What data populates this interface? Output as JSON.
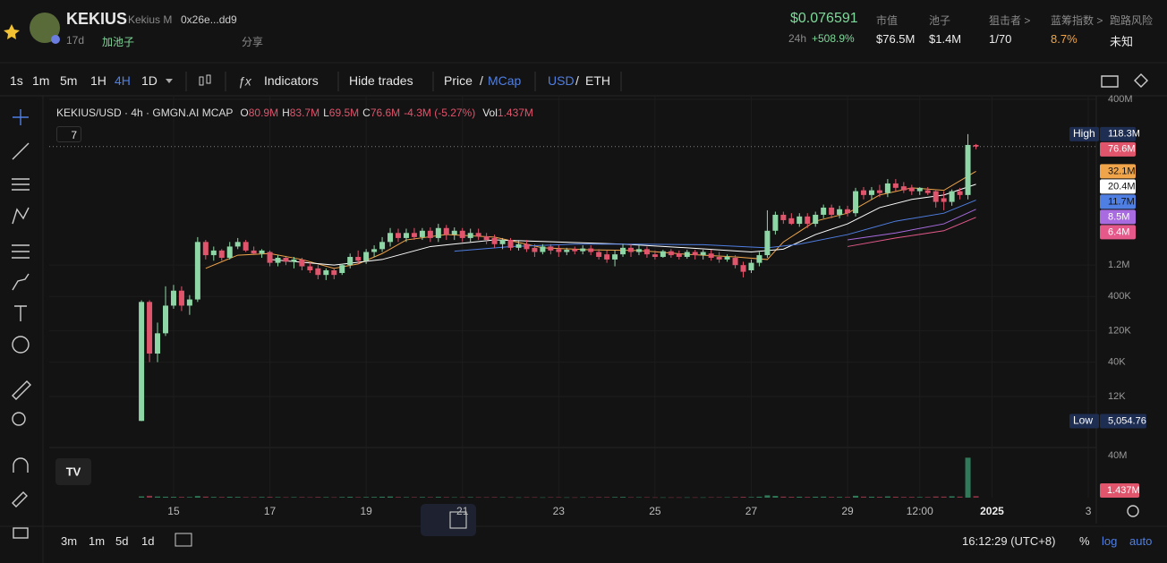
{
  "header": {
    "token": "KEKIUS",
    "name": "Kekius M",
    "address": "0x26e...dd9",
    "age": "17d",
    "pool_tag": "加池子",
    "share": "分享",
    "price": "$0.076591",
    "change_label": "24h",
    "change": "+508.9%",
    "stats": [
      {
        "label": "市值",
        "value": "$76.5M"
      },
      {
        "label": "池子",
        "value": "$1.4M"
      },
      {
        "label": "狙击者 >",
        "value": "1/70"
      },
      {
        "label": "蓝筹指数 >",
        "value": "8.7%"
      },
      {
        "label": "跑路风险",
        "value": "未知"
      }
    ]
  },
  "toolbar": {
    "intervals": [
      "1s",
      "1m",
      "5m",
      "1H",
      "4H",
      "1D"
    ],
    "indicators": "Indicators",
    "hide_trades": "Hide trades",
    "price": "Price",
    "slash": "/",
    "mcap": "MCap",
    "usd": "USD",
    "eth": "ETH"
  },
  "legend": {
    "symbol": "KEKIUS/USD · 4h · GMGN.AI MCAP",
    "items": [
      {
        "key": "O",
        "value": "80.9M"
      },
      {
        "key": "H",
        "value": "83.7M"
      },
      {
        "key": "L",
        "value": "69.5M"
      },
      {
        "key": "C",
        "value": "76.6M"
      }
    ],
    "change": "-4.3M (-5.27%)",
    "volume_key": "Vol",
    "volume_value": "1.437M",
    "indicator_count": "7"
  },
  "footer": {
    "ranges": [
      "3m",
      "1m",
      "5d",
      "1d"
    ],
    "time": "16:12:29 (UTC+8)",
    "percent": "%",
    "log": "log",
    "auto": "auto"
  },
  "chart_data": {
    "type": "candlestick",
    "log": true,
    "grid": true,
    "ylim": [
      4000,
      400000000
    ],
    "yticks": [
      {
        "value": 400000000,
        "label": "400M"
      },
      {
        "value": 1200000,
        "label": "1.2M"
      },
      {
        "value": 400000,
        "label": "400K"
      },
      {
        "value": 120000,
        "label": "120K"
      },
      {
        "value": 40000,
        "label": "40K"
      },
      {
        "value": 12000,
        "label": "12K"
      }
    ],
    "xlim": [
      -11.5,
      119
    ],
    "xticks": [
      {
        "value": 4,
        "label": "15"
      },
      {
        "value": 16,
        "label": "17"
      },
      {
        "value": 28,
        "label": "19"
      },
      {
        "value": 40,
        "label": "21"
      },
      {
        "value": 52,
        "label": "23"
      },
      {
        "value": 64,
        "label": "25"
      },
      {
        "value": 76,
        "label": "27"
      },
      {
        "value": 88,
        "label": "29"
      },
      {
        "value": 97,
        "label": "12:00"
      },
      {
        "value": 106,
        "label": "2025"
      },
      {
        "value": 118,
        "label": "3"
      }
    ],
    "up_color": "#8ed6a6",
    "down_color": "#e0546c",
    "ohlc": [
      [
        5100,
        350000,
        5054.76,
        330000
      ],
      [
        330000,
        350000,
        40000,
        54000
      ],
      [
        54000,
        160000,
        40000,
        110000
      ],
      [
        110000,
        570000,
        100000,
        290000
      ],
      [
        290000,
        600000,
        260000,
        490000
      ],
      [
        490000,
        570000,
        240000,
        290000
      ],
      [
        290000,
        420000,
        210000,
        360000
      ],
      [
        360000,
        3200000,
        330000,
        2700000
      ],
      [
        2700000,
        2900000,
        1460000,
        1700000
      ],
      [
        1700000,
        2300000,
        1400000,
        2000000
      ],
      [
        2000000,
        2100000,
        1400000,
        1550000
      ],
      [
        1550000,
        2700000,
        1460000,
        2300000
      ],
      [
        2300000,
        3100000,
        2100000,
        2700000
      ],
      [
        2700000,
        2900000,
        1900000,
        2000000
      ],
      [
        2000000,
        2300000,
        1700000,
        1800000
      ],
      [
        1800000,
        2100000,
        1550000,
        2000000
      ],
      [
        1900000,
        2000000,
        1150000,
        1300000
      ],
      [
        1300000,
        1700000,
        1150000,
        1550000
      ],
      [
        1550000,
        1600000,
        1200000,
        1350000
      ],
      [
        1350000,
        1600000,
        1070000,
        1460000
      ],
      [
        1460000,
        1550000,
        1000000,
        1150000
      ],
      [
        1150000,
        1300000,
        910000,
        1000000
      ],
      [
        1070000,
        1200000,
        730000,
        850000
      ],
      [
        850000,
        1070000,
        710000,
        1000000
      ],
      [
        1000000,
        1100000,
        730000,
        850000
      ],
      [
        910000,
        1250000,
        850000,
        1200000
      ],
      [
        1200000,
        1800000,
        1070000,
        1600000
      ],
      [
        1600000,
        2000000,
        1250000,
        1400000
      ],
      [
        1400000,
        2100000,
        1250000,
        1900000
      ],
      [
        1900000,
        2400000,
        1600000,
        2100000
      ],
      [
        2100000,
        3200000,
        1900000,
        2700000
      ],
      [
        2700000,
        4400000,
        2300000,
        3700000
      ],
      [
        3700000,
        4300000,
        2700000,
        3100000
      ],
      [
        3100000,
        4300000,
        2700000,
        3700000
      ],
      [
        3700000,
        4400000,
        2900000,
        3200000
      ],
      [
        3200000,
        4400000,
        2900000,
        4000000
      ],
      [
        4000000,
        4500000,
        2700000,
        3100000
      ],
      [
        3100000,
        5100000,
        2700000,
        4400000
      ],
      [
        4400000,
        4900000,
        2900000,
        3500000
      ],
      [
        3500000,
        4500000,
        2900000,
        4000000
      ],
      [
        4000000,
        4400000,
        2700000,
        3100000
      ],
      [
        3100000,
        4300000,
        2700000,
        3700000
      ],
      [
        3700000,
        4300000,
        2900000,
        3300000
      ],
      [
        3300000,
        3700000,
        2500000,
        2900000
      ],
      [
        3100000,
        3500000,
        2200000,
        2500000
      ],
      [
        2500000,
        3100000,
        2100000,
        2900000
      ],
      [
        2900000,
        3100000,
        2000000,
        2200000
      ],
      [
        2200000,
        2900000,
        2000000,
        2500000
      ],
      [
        2500000,
        2900000,
        1900000,
        2100000
      ],
      [
        2200000,
        2500000,
        1600000,
        1900000
      ],
      [
        1900000,
        2500000,
        1750000,
        2300000
      ],
      [
        2300000,
        2500000,
        1750000,
        2000000
      ],
      [
        2100000,
        2400000,
        1600000,
        1900000
      ],
      [
        1900000,
        2200000,
        1700000,
        2050000
      ],
      [
        2100000,
        2300000,
        1750000,
        1950000
      ],
      [
        1950000,
        2400000,
        1750000,
        2150000
      ],
      [
        2150000,
        2400000,
        1700000,
        1900000
      ],
      [
        1900000,
        2100000,
        1460000,
        1600000
      ],
      [
        1750000,
        2000000,
        1300000,
        1460000
      ],
      [
        1460000,
        2000000,
        1150000,
        1750000
      ],
      [
        1750000,
        2500000,
        1600000,
        2200000
      ],
      [
        2200000,
        2500000,
        1600000,
        1900000
      ],
      [
        1900000,
        2400000,
        1700000,
        2100000
      ],
      [
        2100000,
        2300000,
        1550000,
        1750000
      ],
      [
        1750000,
        2000000,
        1460000,
        1600000
      ],
      [
        1600000,
        2050000,
        1550000,
        1950000
      ],
      [
        1950000,
        2100000,
        1550000,
        1700000
      ],
      [
        1800000,
        2000000,
        1460000,
        1600000
      ],
      [
        1600000,
        2050000,
        1500000,
        1900000
      ],
      [
        1900000,
        2050000,
        1460000,
        1700000
      ],
      [
        1700000,
        2050000,
        1460000,
        1900000
      ],
      [
        1800000,
        2050000,
        1400000,
        1550000
      ],
      [
        1600000,
        1900000,
        1300000,
        1460000
      ],
      [
        1460000,
        1750000,
        1350000,
        1600000
      ],
      [
        1550000,
        1700000,
        1070000,
        1200000
      ],
      [
        1200000,
        1350000,
        780000,
        950000
      ],
      [
        1000000,
        1460000,
        910000,
        1300000
      ],
      [
        1300000,
        1900000,
        1150000,
        1700000
      ],
      [
        1700000,
        8200000,
        1550000,
        4000000
      ],
      [
        4000000,
        7800000,
        3500000,
        7000000
      ],
      [
        7000000,
        7800000,
        5100000,
        5800000
      ],
      [
        6200000,
        7400000,
        4900000,
        5100000
      ],
      [
        5100000,
        7400000,
        4600000,
        6600000
      ],
      [
        6600000,
        7400000,
        4400000,
        5100000
      ],
      [
        5100000,
        7800000,
        4600000,
        7000000
      ],
      [
        7000000,
        10000000,
        6200000,
        9000000
      ],
      [
        9000000,
        10000000,
        6200000,
        7000000
      ],
      [
        7000000,
        9600000,
        6200000,
        8500000
      ],
      [
        8500000,
        9600000,
        6600000,
        7400000
      ],
      [
        7400000,
        18000000,
        6600000,
        16000000
      ],
      [
        16500000,
        18500000,
        12000000,
        14000000
      ],
      [
        14000000,
        18500000,
        12000000,
        16500000
      ],
      [
        16500000,
        20000000,
        13000000,
        15000000
      ],
      [
        15000000,
        24500000,
        13000000,
        21000000
      ],
      [
        21000000,
        24500000,
        16000000,
        18000000
      ],
      [
        19000000,
        22000000,
        15000000,
        16500000
      ],
      [
        18000000,
        20000000,
        14000000,
        16000000
      ],
      [
        16000000,
        18500000,
        14000000,
        18000000
      ],
      [
        16500000,
        18500000,
        14000000,
        15000000
      ],
      [
        16000000,
        17000000,
        9000000,
        11000000
      ],
      [
        12500000,
        16000000,
        8200000,
        11000000
      ],
      [
        11000000,
        17000000,
        9600000,
        16000000
      ],
      [
        16000000,
        18000000,
        12000000,
        14000000
      ],
      [
        14000000,
        118300000,
        12000000,
        80900000
      ],
      [
        80900000,
        83700000,
        69500000,
        76600000
      ]
    ],
    "volume": [
      1200000,
      1800000,
      1100000,
      900000,
      800000,
      700000,
      600000,
      1500000,
      1000000,
      700000,
      600000,
      800000,
      700000,
      500000,
      500000,
      600000,
      700000,
      500000,
      400000,
      500000,
      500000,
      400000,
      600000,
      500000,
      400000,
      600000,
      800000,
      500000,
      600000,
      700000,
      900000,
      1100000,
      600000,
      500000,
      500000,
      600000,
      500000,
      700000,
      500000,
      400000,
      400000,
      500000,
      400000,
      400000,
      500000,
      400000,
      400000,
      300000,
      400000,
      400000,
      300000,
      400000,
      400000,
      300000,
      300000,
      400000,
      400000,
      500000,
      500000,
      600000,
      700000,
      400000,
      400000,
      400000,
      300000,
      300000,
      300000,
      300000,
      300000,
      300000,
      300000,
      400000,
      400000,
      400000,
      600000,
      800000,
      600000,
      900000,
      2200000,
      1600000,
      1000000,
      800000,
      900000,
      700000,
      900000,
      1000000,
      700000,
      700000,
      600000,
      1800000,
      1000000,
      900000,
      800000,
      1200000,
      900000,
      700000,
      700000,
      600000,
      600000,
      1100000,
      1000000,
      1300000,
      1000000,
      38000000,
      1437000
    ],
    "volume_lim": [
      0,
      40000000
    ],
    "volume_ticks": [
      {
        "value": 40000000,
        "label": "40M"
      }
    ],
    "volume_tag": {
      "value": 1437000,
      "label": "1.437M",
      "color": "#e0546c"
    },
    "price_tags": [
      {
        "tag": "High",
        "value": 118300000,
        "label": "118.3M",
        "color": "#1e2d52",
        "text_color": "#ffffff"
      },
      {
        "value": 76600000,
        "label": "76.6M",
        "color": "#e0546c",
        "text_color": "#ffffff"
      },
      {
        "value": 32100000,
        "label": "32.1M",
        "color": "#f0a54a",
        "text_color": "#111111"
      },
      {
        "value": 20400000,
        "label": "20.4M",
        "color": "#ffffff",
        "text_color": "#111111"
      },
      {
        "value": 11700000,
        "label": "11.7M",
        "color": "#4f7fe3",
        "text_color": "#111111"
      },
      {
        "value": 8500000,
        "label": "8.5M",
        "color": "#a86be0",
        "text_color": "#ffffff"
      },
      {
        "value": 6400000,
        "label": "6.4M",
        "color": "#e4598a",
        "text_color": "#ffffff"
      }
    ],
    "low_tag": {
      "tag": "Low",
      "value": 5054.76,
      "label": "5,054.76",
      "color": "#1e2d52",
      "text_color": "#ffffff"
    },
    "moving_averages": [
      {
        "color": "#f0a54a",
        "x": [
          8,
          12,
          16,
          20,
          24,
          27,
          30,
          33,
          38,
          44,
          50,
          56,
          62,
          68,
          74,
          78,
          80,
          84,
          88,
          92,
          96,
          100,
          104
        ],
        "values": [
          1070000,
          1700000,
          1800000,
          1460000,
          1070000,
          1250000,
          1800000,
          2900000,
          3500000,
          3200000,
          2200000,
          2050000,
          2000000,
          1750000,
          1600000,
          1460000,
          2700000,
          5600000,
          7400000,
          14000000,
          18000000,
          16500000,
          32100000
        ]
      },
      {
        "color": "#ffffff",
        "x": [
          16,
          24,
          30,
          36,
          44,
          52,
          60,
          68,
          76,
          80,
          84,
          88,
          92,
          96,
          100,
          104
        ],
        "values": [
          1460000,
          1200000,
          1460000,
          2300000,
          2900000,
          2700000,
          2500000,
          2200000,
          1900000,
          2100000,
          3500000,
          5100000,
          9000000,
          12000000,
          14000000,
          20400000
        ]
      },
      {
        "color": "#4f7fe3",
        "x": [
          39,
          46,
          54,
          62,
          70,
          78,
          82,
          88,
          94,
          100,
          104
        ],
        "values": [
          1950000,
          2300000,
          2500000,
          2500000,
          2450000,
          2200000,
          2500000,
          3500000,
          5600000,
          7400000,
          11700000
        ]
      },
      {
        "color": "#a86be0",
        "x": [
          88,
          94,
          100,
          104
        ],
        "values": [
          2900000,
          3700000,
          5100000,
          8500000
        ]
      },
      {
        "color": "#e4598a",
        "x": [
          88,
          94,
          100,
          104
        ],
        "values": [
          2300000,
          3100000,
          4000000,
          6400000
        ]
      }
    ]
  }
}
